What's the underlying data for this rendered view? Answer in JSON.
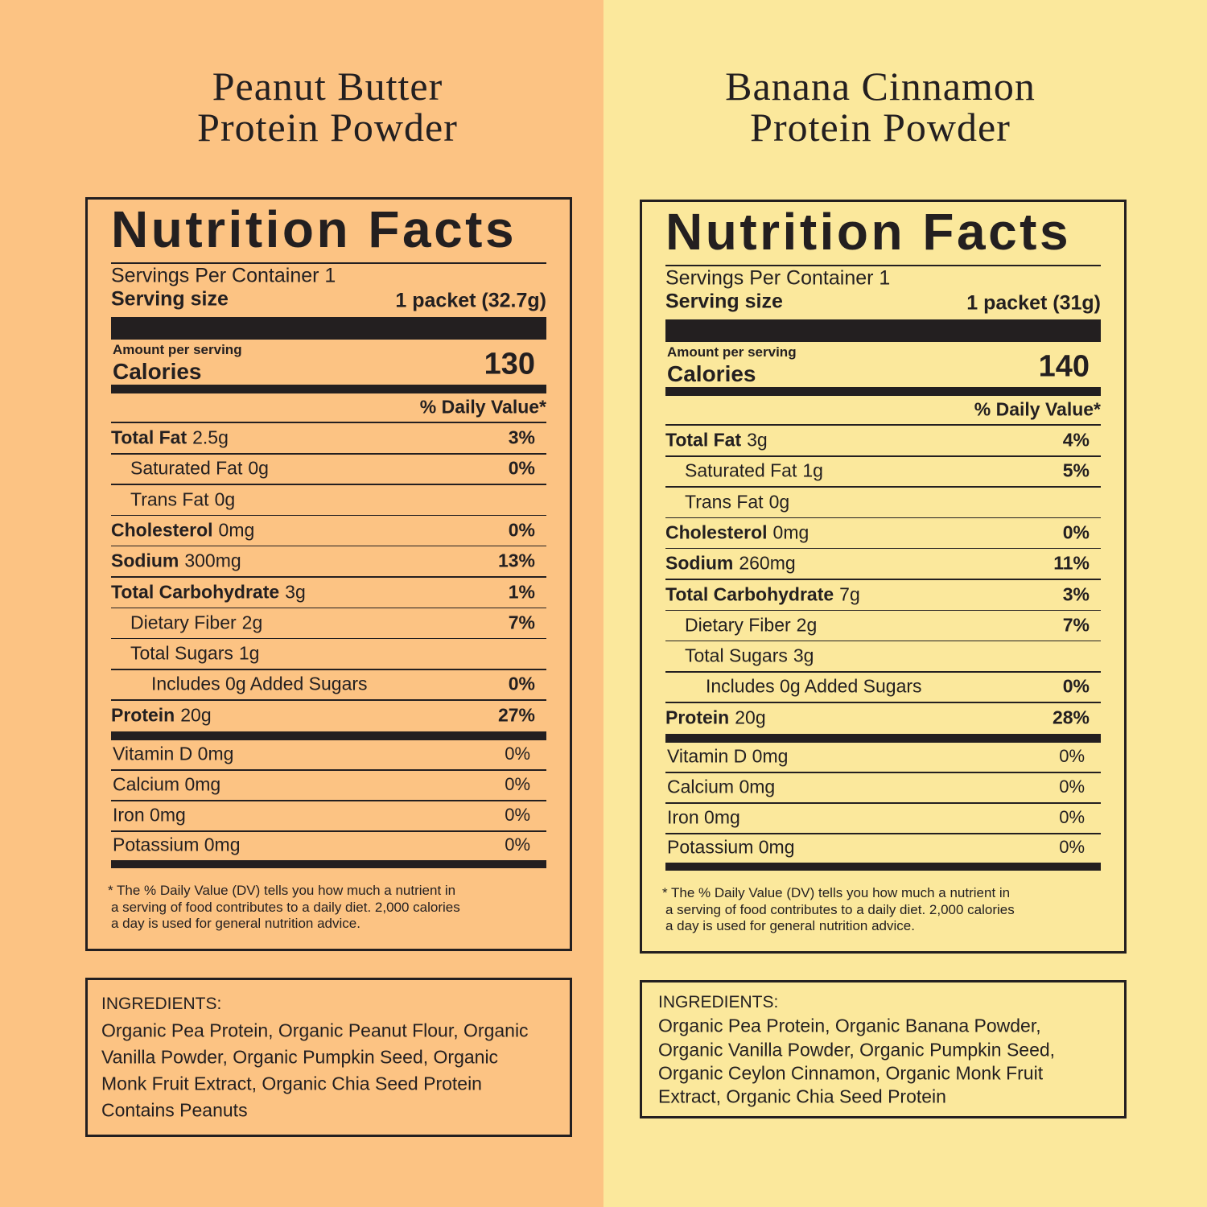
{
  "panels": [
    {
      "title_lines": [
        "Peanut Butter",
        "Protein Powder"
      ],
      "facts": {
        "heading": "Nutrition Facts",
        "servings_per_container": "Servings Per Container 1",
        "serving_size_label": "Serving size",
        "serving_size": "1 packet (32.7g)",
        "amount_per_serving": "Amount per serving",
        "calories_label": "Calories",
        "calories": 130,
        "dv_header": "% Daily Value*",
        "nutrients": [
          {
            "name": "Total Fat",
            "amount": "2.5g",
            "dv": "3%",
            "level": 0
          },
          {
            "name": "Saturated Fat",
            "amount": "0g",
            "dv": "0%",
            "level": 1
          },
          {
            "name": "Trans Fat",
            "amount": "0g",
            "level": 1
          },
          {
            "name": "Cholesterol",
            "amount": "0mg",
            "dv": "0%",
            "level": 0
          },
          {
            "name": "Sodium",
            "amount": "300mg",
            "dv": "13%",
            "level": 0
          },
          {
            "name": "Total Carbohydrate",
            "amount": "3g",
            "dv": "1%",
            "level": 0
          },
          {
            "name": "Dietary Fiber",
            "amount": "2g",
            "dv": "7%",
            "level": 1
          },
          {
            "name": "Total Sugars",
            "amount": "1g",
            "level": 1
          },
          {
            "name": "Includes 0g Added Sugars",
            "dv": "0%",
            "level": 2
          },
          {
            "name": "Protein",
            "amount": "20g",
            "dv": "27%",
            "level": 0
          }
        ],
        "vitamins": [
          {
            "name": "Vitamin D 0mg",
            "dv": "0%"
          },
          {
            "name": "Calcium 0mg",
            "dv": "0%"
          },
          {
            "name": "Iron 0mg",
            "dv": "0%"
          },
          {
            "name": "Potassium 0mg",
            "dv": "0%"
          }
        ],
        "footnote_lines": [
          "* The % Daily Value (DV) tells you how much a nutrient in",
          "a serving of food contributes to a daily diet. 2,000 calories",
          "a day is used for general nutrition advice."
        ]
      },
      "ingredients": {
        "heading": "INGREDIENTS:",
        "lines": [
          "Organic Pea Protein, Organic Peanut Flour, Organic",
          "Vanilla Powder, Organic Pumpkin Seed, Organic",
          "Monk Fruit Extract, Organic Chia Seed Protein",
          "Contains Peanuts"
        ]
      }
    },
    {
      "title_lines": [
        "Banana Cinnamon",
        "Protein Powder"
      ],
      "facts": {
        "heading": "Nutrition Facts",
        "servings_per_container": "Servings Per Container 1",
        "serving_size_label": "Serving size",
        "serving_size": "1 packet (31g)",
        "amount_per_serving": "Amount per serving",
        "calories_label": "Calories",
        "calories": 140,
        "dv_header": "% Daily Value*",
        "nutrients": [
          {
            "name": "Total Fat",
            "amount": "3g",
            "dv": "4%",
            "level": 0
          },
          {
            "name": "Saturated Fat",
            "amount": "1g",
            "dv": "5%",
            "level": 1
          },
          {
            "name": "Trans Fat",
            "amount": "0g",
            "level": 1
          },
          {
            "name": "Cholesterol",
            "amount": "0mg",
            "dv": "0%",
            "level": 0
          },
          {
            "name": "Sodium",
            "amount": "260mg",
            "dv": "11%",
            "level": 0
          },
          {
            "name": "Total Carbohydrate",
            "amount": "7g",
            "dv": "3%",
            "level": 0
          },
          {
            "name": "Dietary Fiber",
            "amount": "2g",
            "dv": "7%",
            "level": 1
          },
          {
            "name": "Total Sugars",
            "amount": "3g",
            "level": 1
          },
          {
            "name": "Includes 0g Added Sugars",
            "dv": "0%",
            "level": 2
          },
          {
            "name": "Protein",
            "amount": "20g",
            "dv": "28%",
            "level": 0
          }
        ],
        "vitamins": [
          {
            "name": "Vitamin D 0mg",
            "dv": "0%"
          },
          {
            "name": "Calcium 0mg",
            "dv": "0%"
          },
          {
            "name": "Iron 0mg",
            "dv": "0%"
          },
          {
            "name": "Potassium 0mg",
            "dv": "0%"
          }
        ],
        "footnote_lines": [
          "* The % Daily Value (DV) tells you how much a nutrient in",
          "a serving of food contributes to a daily diet. 2,000 calories",
          "a day is used for general nutrition advice."
        ]
      },
      "ingredients": {
        "heading": "INGREDIENTS:",
        "lines": [
          "Organic Pea Protein, Organic Banana Powder,",
          "Organic Vanilla Powder, Organic Pumpkin Seed,",
          "Organic Ceylon Cinnamon, Organic Monk Fruit",
          "Extract, Organic Chia Seed Protein"
        ]
      }
    }
  ]
}
